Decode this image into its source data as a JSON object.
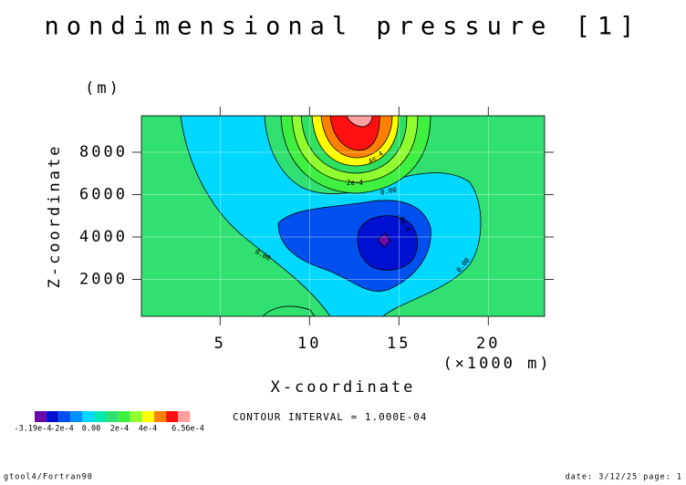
{
  "chart_data": {
    "type": "contour",
    "title": "nondimensional pressure [1]",
    "y_unit": "(m)",
    "ylabel": "Z-coordinate",
    "xlabel": "X-coordinate",
    "x_unit": "(×1000 m)",
    "xlim": [
      0.6,
      23.15
    ],
    "ylim": [
      258,
      9720
    ],
    "xticks": [
      5,
      10,
      15,
      20
    ],
    "yticks": [
      2000,
      4000,
      6000,
      8000
    ],
    "grid": true,
    "contour_labels": [
      "0.00",
      "0.00",
      "0.00",
      "2e-4",
      "4e-4",
      "-2e-4"
    ],
    "colorbar": {
      "colors": [
        "#6a0aa8",
        "#0010d0",
        "#0050f0",
        "#0090ff",
        "#00d8ff",
        "#00e8b0",
        "#30e070",
        "#40f040",
        "#90ff30",
        "#ffff00",
        "#ff8000",
        "#ff1010",
        "#ffa0a0"
      ],
      "labels": [
        "-3.19e-4",
        "-2e-4",
        "0.00",
        "2e-4",
        "4e-4",
        "6.56e-4"
      ]
    },
    "contour_interval": "CONTOUR INTERVAL = 1.000E-04",
    "footer_left": "gtool4/Fortran90",
    "footer_right": "date: 3/12/25 page: 1"
  }
}
